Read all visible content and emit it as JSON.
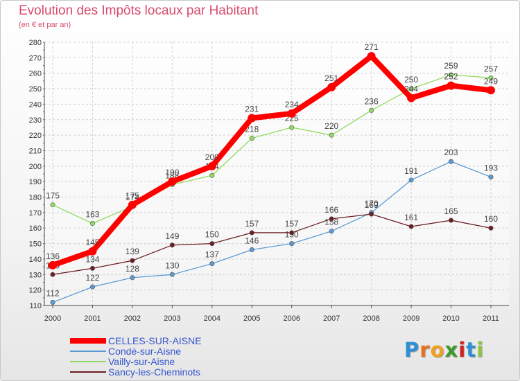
{
  "title": "Evolution des Impôts locaux par Habitant",
  "subtitle": "(en € et par an)",
  "logo": {
    "letters": [
      "P",
      "r",
      "o",
      "x",
      "i",
      "t",
      "i"
    ],
    "colors": [
      "#2d8fd5",
      "#e8701a",
      "#f0a020",
      "#3c9a2a",
      "#d02020",
      "#2d8fd5",
      "#8cc63f"
    ]
  },
  "chart_data": {
    "type": "line",
    "title": "Evolution des Impôts locaux par Habitant",
    "subtitle": "(en € et par an)",
    "xlabel": "",
    "ylabel": "",
    "x": [
      "2000",
      "2001",
      "2002",
      "2003",
      "2004",
      "2005",
      "2006",
      "2007",
      "2008",
      "2009",
      "2010",
      "2011"
    ],
    "ylim": [
      110,
      280
    ],
    "yticks": [
      110,
      120,
      130,
      140,
      150,
      160,
      170,
      180,
      190,
      200,
      210,
      220,
      230,
      240,
      250,
      260,
      270,
      280
    ],
    "grid": true,
    "legend": "bottom-left",
    "series": [
      {
        "name": "CELLES-SUR-AISNE",
        "color": "#ff0000",
        "bold": true,
        "values": [
          136,
          145,
          175,
          190,
          200,
          231,
          234,
          251,
          271,
          244,
          252,
          249
        ]
      },
      {
        "name": "Condé-sur-Aisne",
        "color": "#5b9bd5",
        "bold": false,
        "values": [
          112,
          122,
          128,
          130,
          137,
          146,
          150,
          158,
          170,
          191,
          203,
          193
        ]
      },
      {
        "name": "Vailly-sur-Aisne",
        "color": "#90dc60",
        "bold": false,
        "values": [
          175,
          163,
          174,
          188,
          194,
          218,
          225,
          220,
          236,
          250,
          259,
          257
        ]
      },
      {
        "name": "Sancy-les-Cheminots",
        "color": "#6b1e24",
        "bold": false,
        "values": [
          130,
          134,
          139,
          149,
          150,
          157,
          157,
          166,
          169,
          161,
          165,
          160
        ]
      }
    ]
  }
}
